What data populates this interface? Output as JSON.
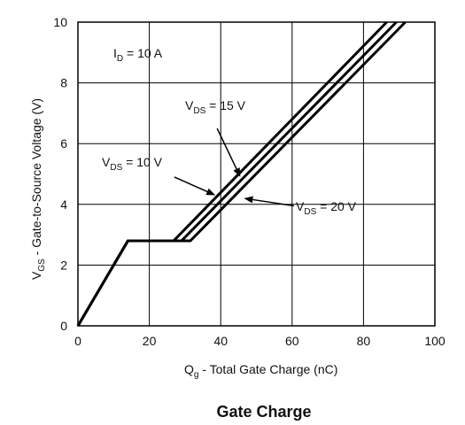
{
  "chart_data": {
    "type": "line",
    "title": "Gate Charge",
    "xlabel": {
      "main": "Q",
      "sub": "g",
      "rest": " - Total Gate Charge (nC)"
    },
    "ylabel": {
      "main": "V",
      "sub": "GS",
      "rest": " - Gate-to-Source Voltage (V)"
    },
    "xlim": [
      0,
      100
    ],
    "ylim": [
      0,
      10
    ],
    "xticks": [
      "0",
      "20",
      "40",
      "60",
      "80",
      "100"
    ],
    "yticks": [
      "0",
      "2",
      "4",
      "6",
      "8",
      "10"
    ],
    "grid": true,
    "series": [
      {
        "name": "VDS = 10 V",
        "x": [
          0,
          14,
          26.8,
          86.5
        ],
        "y": [
          0,
          2.8,
          2.8,
          10
        ]
      },
      {
        "name": "VDS = 15 V",
        "x": [
          0,
          14,
          29,
          89.2
        ],
        "y": [
          0,
          2.8,
          2.8,
          10
        ]
      },
      {
        "name": "VDS = 20 V",
        "x": [
          0,
          14,
          31.5,
          91.7
        ],
        "y": [
          0,
          2.8,
          2.8,
          10
        ]
      }
    ],
    "annotations": [
      {
        "main": "I",
        "sub": "D",
        "rest": " = 10 A"
      },
      {
        "main": "V",
        "sub": "DS",
        "rest": " = 15 V"
      },
      {
        "main": "V",
        "sub": "DS",
        "rest": " = 10 V"
      },
      {
        "main": "V",
        "sub": "DS",
        "rest": " = 20 V"
      }
    ],
    "arrows": [
      {
        "series": "VDS = 15 V",
        "from": [
          39,
          6.5
        ],
        "to": [
          45.5,
          4.9
        ]
      },
      {
        "series": "VDS = 10 V",
        "from": [
          27,
          4.9
        ],
        "to": [
          38.5,
          4.3
        ]
      },
      {
        "series": "VDS = 20 V",
        "from": [
          60.5,
          3.95
        ],
        "to": [
          46.5,
          4.2
        ]
      }
    ]
  }
}
